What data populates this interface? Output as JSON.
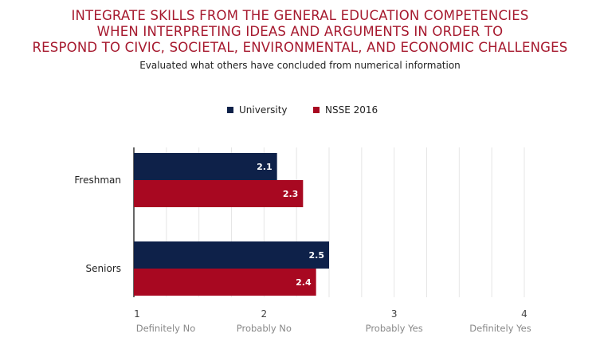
{
  "chart_data": {
    "type": "bar",
    "orientation": "horizontal",
    "title_lines": [
      "INTEGRATE SKILLS FROM THE GENERAL EDUCATION COMPETENCIES",
      "WHEN INTERPRETING IDEAS AND ARGUMENTS IN ORDER TO",
      "RESPOND TO CIVIC, SOCIETAL, ENVIRONMENTAL, AND ECONOMIC CHALLENGES"
    ],
    "subtitle": "Evaluated what others have concluded from numerical information",
    "categories": [
      "Freshman",
      "Seniors"
    ],
    "series": [
      {
        "name": "University",
        "color": "#0e2149",
        "values": [
          2.1,
          2.5
        ]
      },
      {
        "name": "NSSE 2016",
        "color": "#a80821",
        "values": [
          2.3,
          2.4
        ]
      }
    ],
    "xlim": [
      1,
      4
    ],
    "xticks": [
      1,
      2,
      3,
      4
    ],
    "xtick_sublabels": [
      "Definitely No",
      "Probably No",
      "Probably Yes",
      "Definitely Yes"
    ],
    "legend_position": "top-center",
    "grid": "vertical"
  }
}
